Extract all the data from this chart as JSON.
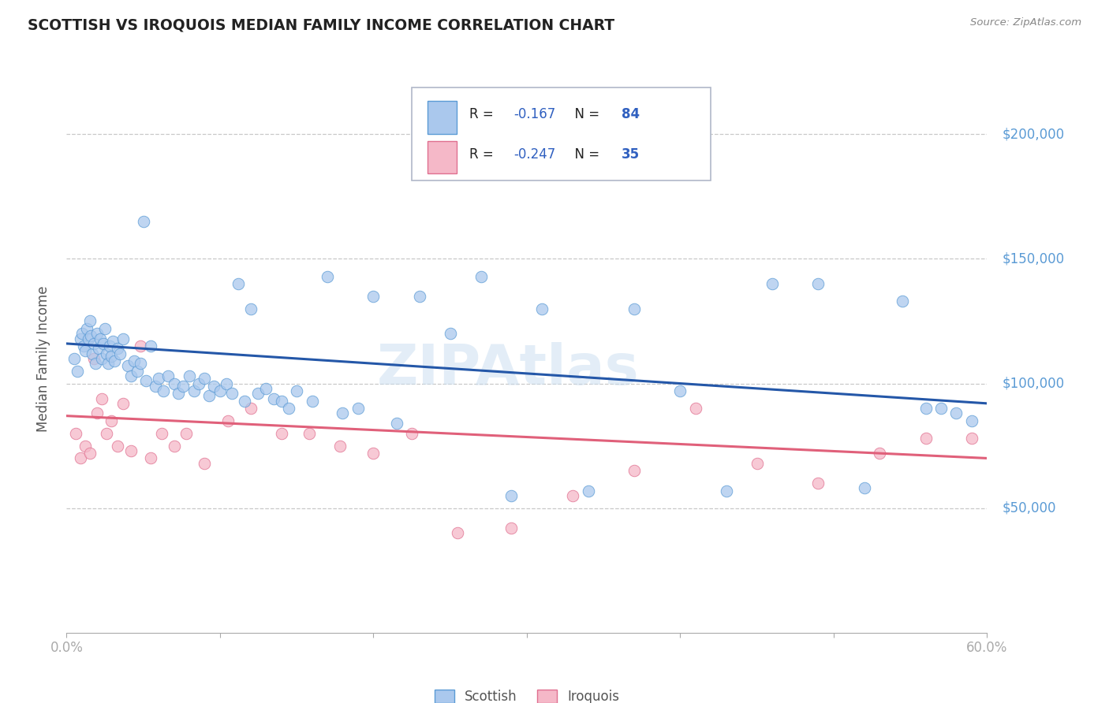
{
  "title": "SCOTTISH VS IROQUOIS MEDIAN FAMILY INCOME CORRELATION CHART",
  "source": "Source: ZipAtlas.com",
  "ylabel": "Median Family Income",
  "ytick_labels": [
    "$50,000",
    "$100,000",
    "$150,000",
    "$200,000"
  ],
  "ytick_values": [
    50000,
    100000,
    150000,
    200000
  ],
  "xlim": [
    0.0,
    0.6
  ],
  "ylim": [
    0,
    220000
  ],
  "watermark": "ZIPAtlas",
  "scottish_color": "#aac8ed",
  "iroquois_color": "#f5b8c8",
  "scottish_edge_color": "#5b9bd5",
  "iroquois_edge_color": "#e07090",
  "scottish_line_color": "#2457a8",
  "iroquois_line_color": "#e0607a",
  "scatter_alpha": 0.75,
  "scatter_size": 110,
  "scottish_R": -0.167,
  "scottish_N": 84,
  "iroquois_R": -0.247,
  "iroquois_N": 35,
  "scottish_x": [
    0.005,
    0.007,
    0.009,
    0.01,
    0.011,
    0.012,
    0.013,
    0.014,
    0.015,
    0.016,
    0.017,
    0.018,
    0.019,
    0.02,
    0.021,
    0.022,
    0.023,
    0.024,
    0.025,
    0.026,
    0.027,
    0.028,
    0.029,
    0.03,
    0.031,
    0.033,
    0.035,
    0.037,
    0.04,
    0.042,
    0.044,
    0.046,
    0.048,
    0.05,
    0.052,
    0.055,
    0.058,
    0.06,
    0.063,
    0.066,
    0.07,
    0.073,
    0.076,
    0.08,
    0.083,
    0.086,
    0.09,
    0.093,
    0.096,
    0.1,
    0.104,
    0.108,
    0.112,
    0.116,
    0.12,
    0.125,
    0.13,
    0.135,
    0.14,
    0.145,
    0.15,
    0.16,
    0.17,
    0.18,
    0.19,
    0.2,
    0.215,
    0.23,
    0.25,
    0.27,
    0.29,
    0.31,
    0.34,
    0.37,
    0.4,
    0.43,
    0.46,
    0.49,
    0.52,
    0.545,
    0.56,
    0.57,
    0.58,
    0.59
  ],
  "scottish_y": [
    110000,
    105000,
    118000,
    120000,
    115000,
    113000,
    122000,
    118000,
    125000,
    119000,
    112000,
    116000,
    108000,
    120000,
    114000,
    118000,
    110000,
    116000,
    122000,
    112000,
    108000,
    115000,
    111000,
    117000,
    109000,
    114000,
    112000,
    118000,
    107000,
    103000,
    109000,
    105000,
    108000,
    165000,
    101000,
    115000,
    99000,
    102000,
    97000,
    103000,
    100000,
    96000,
    99000,
    103000,
    97000,
    100000,
    102000,
    95000,
    99000,
    97000,
    100000,
    96000,
    140000,
    93000,
    130000,
    96000,
    98000,
    94000,
    93000,
    90000,
    97000,
    93000,
    143000,
    88000,
    90000,
    135000,
    84000,
    135000,
    120000,
    143000,
    55000,
    130000,
    57000,
    130000,
    97000,
    57000,
    140000,
    140000,
    58000,
    133000,
    90000,
    90000,
    88000,
    85000
  ],
  "iroquois_x": [
    0.006,
    0.009,
    0.012,
    0.015,
    0.018,
    0.02,
    0.023,
    0.026,
    0.029,
    0.033,
    0.037,
    0.042,
    0.048,
    0.055,
    0.062,
    0.07,
    0.078,
    0.09,
    0.105,
    0.12,
    0.14,
    0.158,
    0.178,
    0.2,
    0.225,
    0.255,
    0.29,
    0.33,
    0.37,
    0.41,
    0.45,
    0.49,
    0.53,
    0.56,
    0.59
  ],
  "iroquois_y": [
    80000,
    70000,
    75000,
    72000,
    110000,
    88000,
    94000,
    80000,
    85000,
    75000,
    92000,
    73000,
    115000,
    70000,
    80000,
    75000,
    80000,
    68000,
    85000,
    90000,
    80000,
    80000,
    75000,
    72000,
    80000,
    40000,
    42000,
    55000,
    65000,
    90000,
    68000,
    60000,
    72000,
    78000,
    78000
  ],
  "scottish_trend_x": [
    0.0,
    0.6
  ],
  "scottish_trend_y": [
    116000,
    92000
  ],
  "iroquois_trend_x": [
    0.0,
    0.6
  ],
  "iroquois_trend_y": [
    87000,
    70000
  ],
  "background_color": "#ffffff",
  "grid_color": "#c8c8c8",
  "title_color": "#222222",
  "axis_label_color": "#555555",
  "right_axis_color": "#5b9bd5",
  "legend_text_color": "#222222",
  "legend_value_color": "#3060c0"
}
